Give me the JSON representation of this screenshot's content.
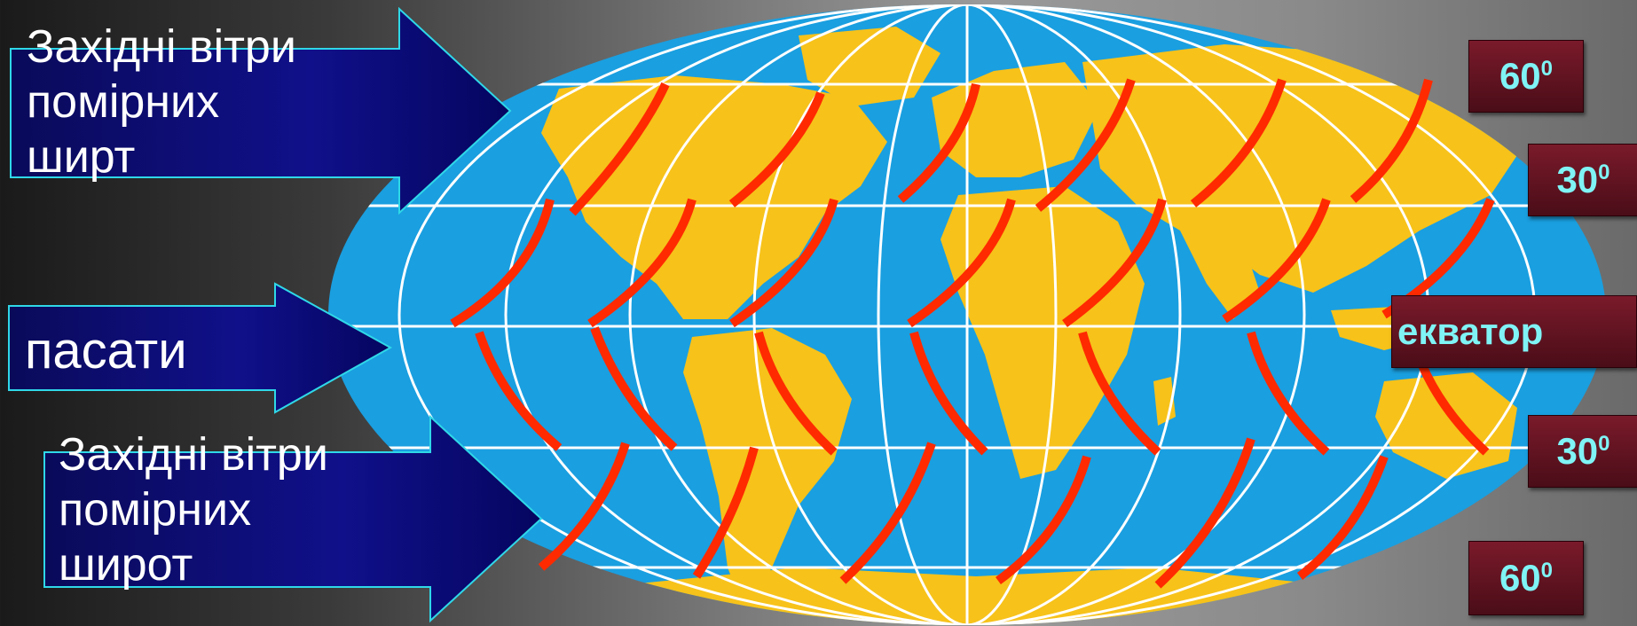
{
  "arrows": {
    "top_label": "Західні вітри\n помірних\nширт",
    "middle_label": "пасати",
    "bottom_label": "Західні вітри\n помірних\nширот"
  },
  "latitudes": {
    "top_60": {
      "value": "60",
      "sup": "0"
    },
    "top_30": {
      "value": "30",
      "sup": "0"
    },
    "equator": "екватор",
    "bottom_30": {
      "value": "30",
      "sup": "0"
    },
    "bottom_60": {
      "value": "60",
      "sup": "0"
    }
  },
  "colors": {
    "ocean": "#1a9fe0",
    "land": "#f7c21a",
    "wind": "#ff2a00",
    "arrow_fill": "#0a0a6e",
    "arrow_border": "#2fd8e8",
    "label_text": "#7ff3f5"
  }
}
